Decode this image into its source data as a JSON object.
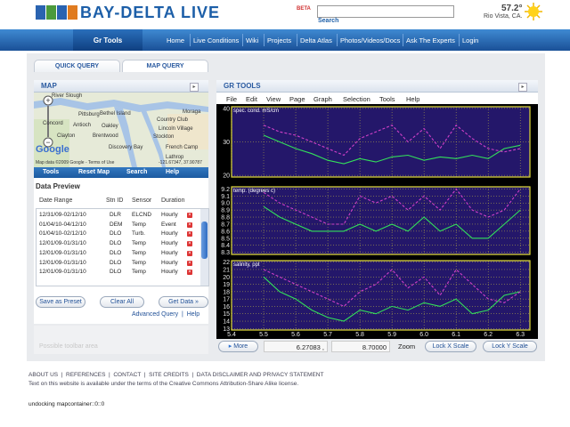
{
  "header": {
    "logo": "BAY-DELTA LIVE",
    "badge": "BETA",
    "search_button": "Search",
    "temperature": "57.2°",
    "location": "Rio Vista, CA."
  },
  "nav": {
    "tab": "Gr Tools",
    "links": [
      "Home",
      "Live Conditions",
      "Wiki",
      "Projects",
      "Delta Atlas",
      "Photos/Videos/Docs",
      "Ask The Experts",
      "Login"
    ]
  },
  "tabs": [
    "QUICK QUERY",
    "MAP QUERY"
  ],
  "map": {
    "title": "MAP",
    "labels": [
      "River Slough",
      "Pittsburg",
      "Bethel Island",
      "Concord",
      "Antioch",
      "Oakley",
      "Clayton",
      "Brentwood",
      "Moraga",
      "Country Club",
      "Lincoln Village",
      "Stockton",
      "Discovery Bay",
      "French Camp",
      "Lathrop",
      "Google"
    ],
    "attribution": "Map data ©2009 Google - Terms of Use",
    "coordinates": "-121.67347, 37.90787",
    "toolbar": [
      "Tools",
      "Reset Map",
      "Search",
      "Help"
    ]
  },
  "data_preview": {
    "title": "Data Preview",
    "columns": [
      "Date Range",
      "Stn ID",
      "Sensor",
      "Duration"
    ],
    "rows": [
      [
        "12/31/09-02/12/10",
        "DLR",
        "ELCND",
        "Hourly"
      ],
      [
        "01/04/10-04/12/10",
        "DEM",
        "Temp",
        "Event"
      ],
      [
        "01/04/10-02/12/10",
        "DLO",
        "Turb.",
        "Hourly"
      ],
      [
        "12/01/09-01/31/10",
        "DLO",
        "Temp",
        "Hourly"
      ],
      [
        "12/01/09-01/31/10",
        "DLO",
        "Temp",
        "Hourly"
      ],
      [
        "12/01/09-01/31/10",
        "DLO",
        "Temp",
        "Hourly"
      ],
      [
        "12/01/09-01/31/10",
        "DLO",
        "Temp",
        "Hourly"
      ]
    ],
    "buttons": [
      "Save as Preset",
      "Clear All",
      "Get Data »"
    ],
    "links": "Advanced Query  |  Help",
    "toolbar_placeholder": "Possible toolbar area"
  },
  "gr_tools": {
    "title": "GR TOOLS",
    "menu": [
      "File",
      "Edit",
      "View",
      "Page",
      "Graph",
      "Selection",
      "Tools",
      "Help"
    ],
    "plots": {
      "xlim": [
        5.4,
        6.33
      ],
      "xticks": [
        5.4,
        5.5,
        5.6,
        5.7,
        5.8,
        5.9,
        {
          "value": 6.0,
          "label": "6.0"
        },
        6.1,
        6.2,
        6.3
      ],
      "x": [
        5.5,
        5.55,
        5.6,
        5.65,
        5.7,
        5.75,
        5.8,
        5.85,
        5.9,
        5.95,
        6.0,
        6.05,
        6.1,
        6.15,
        6.2,
        6.25,
        6.3
      ],
      "grid": true,
      "charts": [
        {
          "type": "line",
          "ylabel": "spec. cond. mS/cm",
          "ylim": [
            19.5,
            40.5
          ],
          "yticks": [
            40,
            30,
            20
          ],
          "series": [
            {
              "color": "#33e05a",
              "values": [
                32,
                30,
                28,
                26.5,
                24.5,
                23.5,
                25,
                24,
                25.5,
                26,
                24.5,
                25.5,
                25,
                26,
                25,
                28,
                29
              ]
            },
            {
              "color": "#d040c8",
              "dashed": true,
              "values": [
                35,
                33,
                32,
                30,
                28,
                26,
                31,
                33,
                35,
                30,
                34,
                28,
                35,
                31,
                28,
                27,
                28
              ]
            }
          ]
        },
        {
          "type": "line",
          "ylabel": "temp. (degrees c)",
          "ylim": [
            8.27,
            9.23
          ],
          "yticks": [
            9.2,
            9.1,
            {
              "value": 9.0,
              "label": "9.0"
            },
            8.9,
            8.8,
            8.7,
            8.6,
            8.5,
            8.4,
            8.3
          ],
          "series": [
            {
              "color": "#33e05a",
              "values": [
                8.95,
                8.8,
                8.7,
                8.6,
                8.6,
                8.6,
                8.7,
                8.6,
                8.7,
                8.6,
                8.8,
                8.6,
                8.7,
                8.5,
                8.5,
                8.7,
                8.9
              ]
            },
            {
              "color": "#d040c8",
              "dashed": true,
              "values": [
                9.15,
                9.0,
                8.9,
                8.8,
                8.7,
                8.7,
                9.1,
                9.0,
                9.1,
                8.9,
                9.1,
                8.9,
                9.2,
                8.9,
                8.8,
                8.9,
                9.2
              ]
            }
          ]
        },
        {
          "type": "line",
          "ylabel": "salinity, ppt",
          "ylim": [
            12.8,
            22.2
          ],
          "yticks": [
            22,
            21,
            20,
            19,
            18,
            17,
            16,
            15,
            14,
            13
          ],
          "series": [
            {
              "color": "#33e05a",
              "values": [
                20,
                18,
                17,
                15.5,
                14.5,
                14,
                15.5,
                15,
                16,
                15.5,
                16.5,
                16,
                17,
                15,
                15.5,
                17.5,
                18
              ]
            },
            {
              "color": "#d040c8",
              "dashed": true,
              "values": [
                21,
                20,
                19,
                18,
                17,
                16,
                18,
                19,
                21,
                18.5,
                20,
                17.5,
                21,
                19,
                17,
                16.5,
                18
              ]
            }
          ]
        }
      ]
    },
    "status": {
      "more": "More",
      "x_readout": "6.27083 ,",
      "y_readout": "8.70000",
      "zoom": "Zoom",
      "buttons": [
        "Lock X Scale",
        "Lock Y Scale"
      ]
    }
  },
  "footer": {
    "links": "ABOUT US  |  REFERENCES  |  CONTACT  |  SITE CREDITS  |  DATA DISCLAIMER AND PRIVACY STATEMENT",
    "license": "Text on this website is available under the terms of the Creative Commons Attribution-Share Alike license.",
    "status": "undocking mapcontainer::0::0"
  }
}
